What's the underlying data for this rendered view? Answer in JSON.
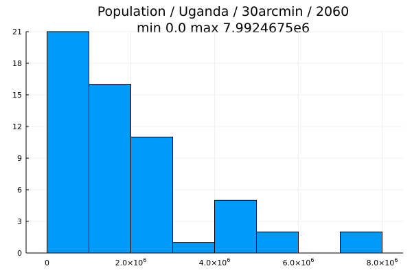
{
  "chart_data": {
    "type": "bar",
    "title": "Population / Uganda / 30arcmin / 2060",
    "subtitle": "min 0.0  max 7.9924675e6",
    "xlabel": "",
    "ylabel": "",
    "bins": [
      {
        "x0": 0,
        "x1": 1000000,
        "value": 21
      },
      {
        "x0": 1000000,
        "x1": 2000000,
        "value": 16
      },
      {
        "x0": 2000000,
        "x1": 3000000,
        "value": 11
      },
      {
        "x0": 3000000,
        "x1": 4000000,
        "value": 1
      },
      {
        "x0": 4000000,
        "x1": 5000000,
        "value": 5
      },
      {
        "x0": 5000000,
        "x1": 6000000,
        "value": 2
      },
      {
        "x0": 6000000,
        "x1": 7000000,
        "value": 0
      },
      {
        "x0": 7000000,
        "x1": 8000000,
        "value": 2
      }
    ],
    "xlim": [
      -500000,
      8500000
    ],
    "ylim": [
      0,
      21
    ],
    "x_ticks": [
      {
        "value": 0,
        "label": "0",
        "exp": ""
      },
      {
        "value": 2000000,
        "label": "2.0×10",
        "exp": "6"
      },
      {
        "value": 4000000,
        "label": "4.0×10",
        "exp": "6"
      },
      {
        "value": 6000000,
        "label": "6.0×10",
        "exp": "6"
      },
      {
        "value": 8000000,
        "label": "8.0×10",
        "exp": "6"
      }
    ],
    "y_ticks": [
      0,
      3,
      6,
      9,
      12,
      15,
      18,
      21
    ],
    "grid": true,
    "legend": "none",
    "bar_color": "#009af9"
  }
}
